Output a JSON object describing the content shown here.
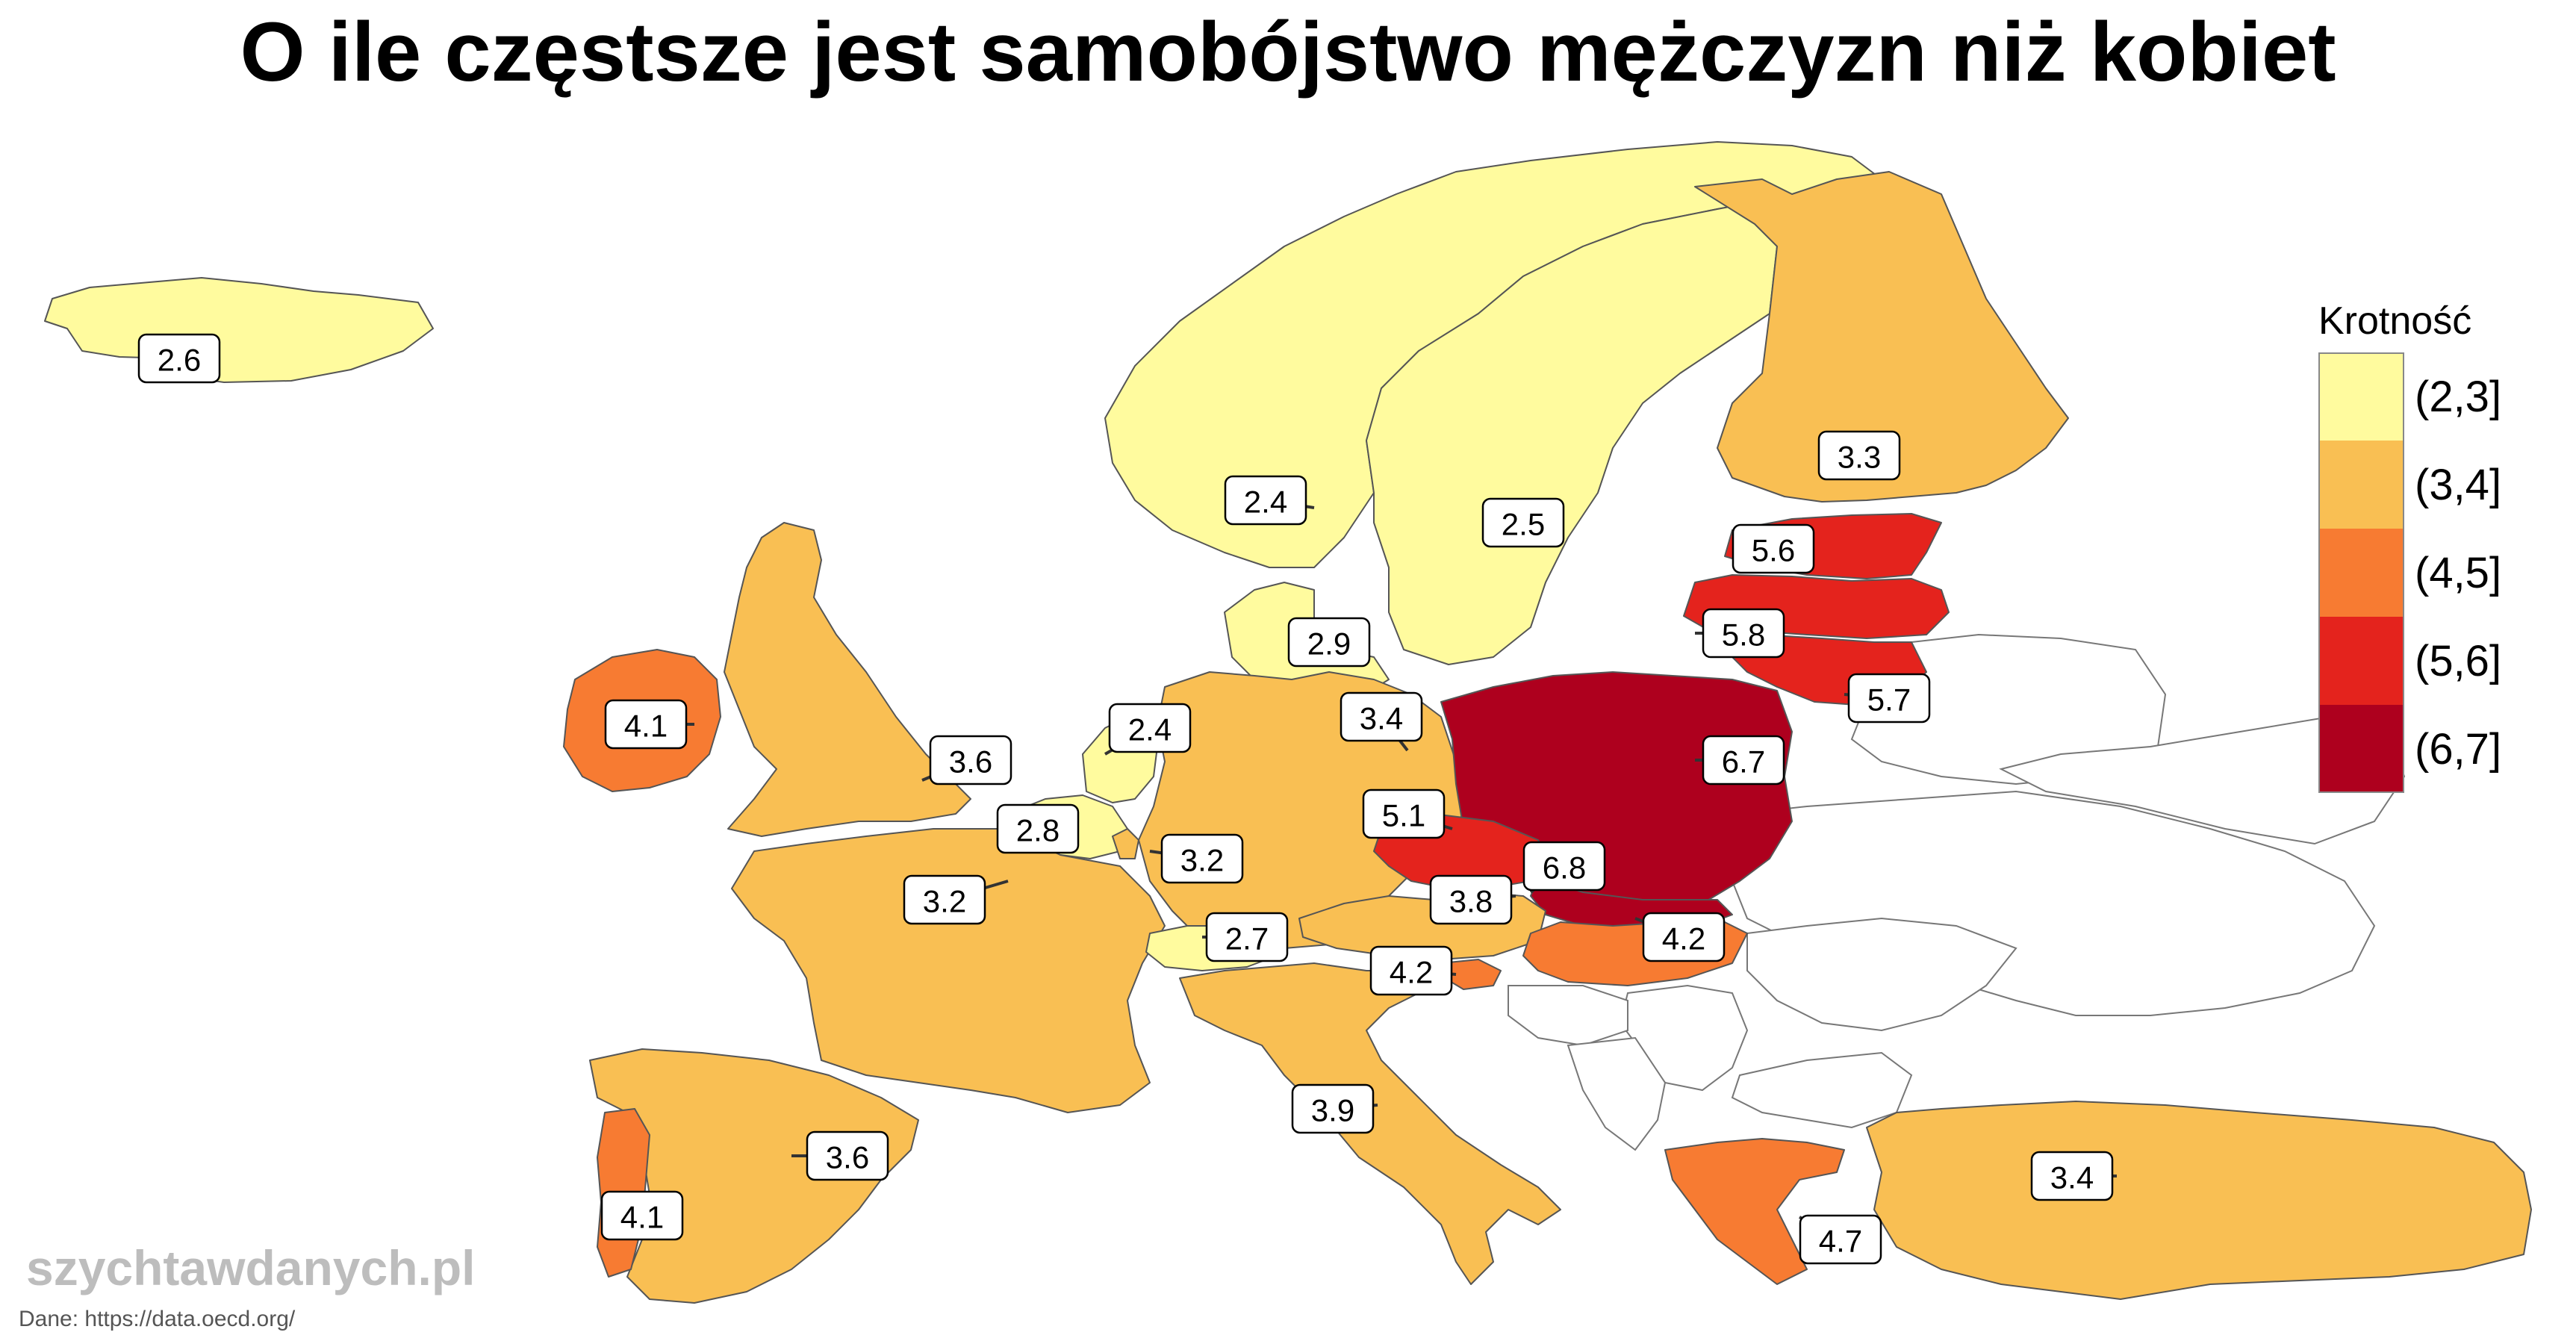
{
  "title": "O ile częstsze jest samobójstwo mężczyzn niż kobiet",
  "legend": {
    "title": "Krotność",
    "items": [
      {
        "label": "(2,3]",
        "color": "#FFFB9E"
      },
      {
        "label": "(3,4]",
        "color": "#F9BF53"
      },
      {
        "label": "(4,5]",
        "color": "#F77B32"
      },
      {
        "label": "(5,6]",
        "color": "#E4231D"
      },
      {
        "label": "(6,7]",
        "color": "#AE001E"
      }
    ]
  },
  "branding": "szychtawdanych.pl",
  "source": "Dane: https://data.oecd.org/",
  "countries": [
    {
      "name": "Islandia",
      "value": "2.6",
      "color": "#FFFB9E"
    },
    {
      "name": "Norwegia",
      "value": "2.4",
      "color": "#FFFB9E"
    },
    {
      "name": "Szwecja",
      "value": "2.5",
      "color": "#FFFB9E"
    },
    {
      "name": "Finlandia",
      "value": "3.3",
      "color": "#F9BF53"
    },
    {
      "name": "Estonia",
      "value": "5.6",
      "color": "#E4231D"
    },
    {
      "name": "Łotwa",
      "value": "5.8",
      "color": "#E4231D"
    },
    {
      "name": "Litwa",
      "value": "5.7",
      "color": "#E4231D"
    },
    {
      "name": "Dania",
      "value": "2.9",
      "color": "#FFFB9E"
    },
    {
      "name": "Irlandia",
      "value": "4.1",
      "color": "#F77B32"
    },
    {
      "name": "Wielka Brytania",
      "value": "3.6",
      "color": "#F9BF53"
    },
    {
      "name": "Holandia",
      "value": "2.4",
      "color": "#FFFB9E"
    },
    {
      "name": "Belgia",
      "value": "2.8",
      "color": "#FFFB9E"
    },
    {
      "name": "Luksemburg",
      "value": "3.2",
      "color": "#F9BF53"
    },
    {
      "name": "Niemcy",
      "value": "3.4",
      "color": "#F9BF53"
    },
    {
      "name": "Polska",
      "value": "6.7",
      "color": "#AE001E"
    },
    {
      "name": "Francja",
      "value": "3.2",
      "color": "#F9BF53"
    },
    {
      "name": "Czechy",
      "value": "5.1",
      "color": "#E4231D"
    },
    {
      "name": "Słowacja",
      "value": "6.8",
      "color": "#AE001E"
    },
    {
      "name": "Austria",
      "value": "3.8",
      "color": "#F9BF53"
    },
    {
      "name": "Węgry",
      "value": "4.2",
      "color": "#F77B32"
    },
    {
      "name": "Szwajcaria",
      "value": "2.7",
      "color": "#FFFB9E"
    },
    {
      "name": "Słowenia",
      "value": "4.2",
      "color": "#F77B32"
    },
    {
      "name": "Włochy",
      "value": "3.9",
      "color": "#F9BF53"
    },
    {
      "name": "Hiszpania",
      "value": "3.6",
      "color": "#F9BF53"
    },
    {
      "name": "Portugalia",
      "value": "4.1",
      "color": "#F77B32"
    },
    {
      "name": "Grecja",
      "value": "4.7",
      "color": "#F77B32"
    },
    {
      "name": "Turcja",
      "value": "3.4",
      "color": "#F9BF53"
    }
  ]
}
